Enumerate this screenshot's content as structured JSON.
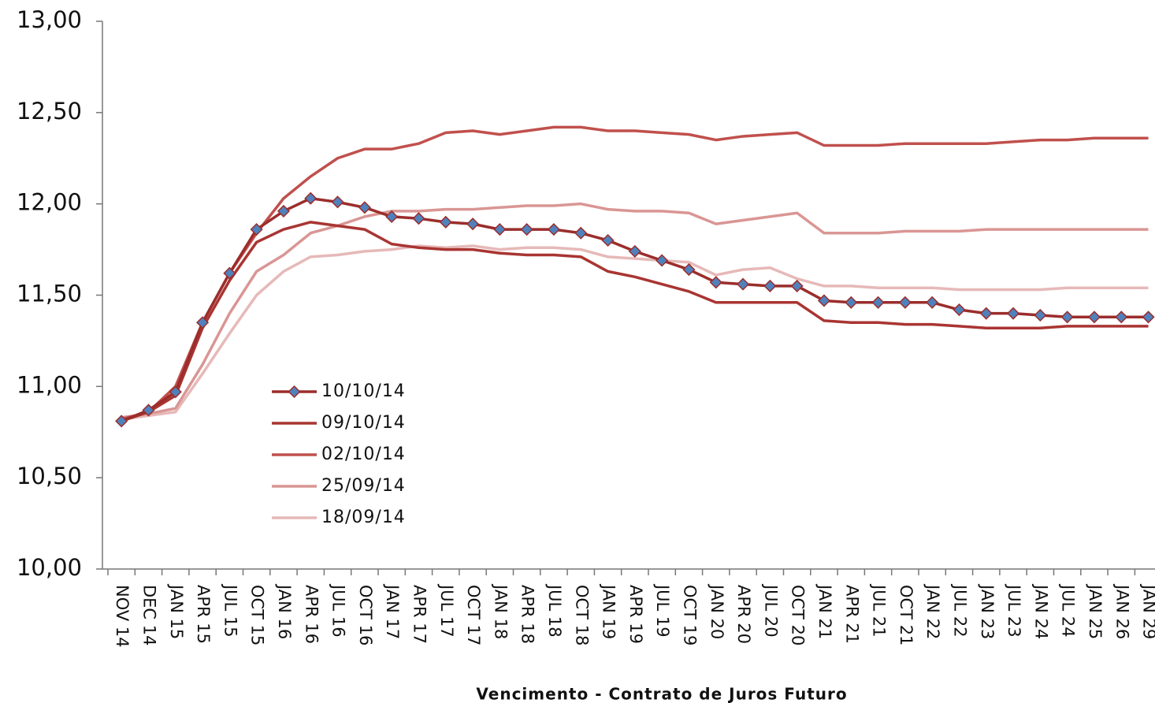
{
  "chart_data": {
    "type": "line",
    "x_label": "Vencimento - Contrato de Juros Futuro",
    "categories": [
      "NOV 14",
      "DEC 14",
      "JAN 15",
      "APR 15",
      "JUL 15",
      "OCT 15",
      "JAN 16",
      "APR 16",
      "JUL 16",
      "OCT 16",
      "JAN 17",
      "APR 17",
      "JUL 17",
      "OCT 17",
      "JAN 18",
      "APR 18",
      "JUL 18",
      "OCT 18",
      "JAN 19",
      "APR 19",
      "JUL 19",
      "OCT 19",
      "JAN 20",
      "APR 20",
      "JUL 20",
      "OCT 20",
      "JAN 21",
      "APR 21",
      "JUL 21",
      "OCT 21",
      "JAN 22",
      "JUL 22",
      "JAN 23",
      "JUL 23",
      "JAN 24",
      "JUL 24",
      "JAN 25",
      "JAN 26",
      "JAN 29"
    ],
    "series": [
      {
        "name": "10/10/14",
        "color": "#9b2d2b",
        "marker": "diamond",
        "marker_color": "#4f81bd",
        "values": [
          10.81,
          10.87,
          10.97,
          11.35,
          11.62,
          11.86,
          11.96,
          12.03,
          12.01,
          11.98,
          11.93,
          11.92,
          11.9,
          11.89,
          11.86,
          11.86,
          11.86,
          11.84,
          11.8,
          11.74,
          11.69,
          11.64,
          11.57,
          11.56,
          11.55,
          11.55,
          11.47,
          11.46,
          11.46,
          11.46,
          11.46,
          11.42,
          11.4,
          11.4,
          11.39,
          11.38,
          11.38,
          11.38,
          11.38
        ]
      },
      {
        "name": "09/10/14",
        "color": "#a93532",
        "values": [
          10.81,
          10.86,
          10.95,
          11.32,
          11.58,
          11.79,
          11.86,
          11.9,
          11.88,
          11.86,
          11.78,
          11.76,
          11.75,
          11.75,
          11.73,
          11.72,
          11.72,
          11.71,
          11.63,
          11.6,
          11.56,
          11.52,
          11.46,
          11.46,
          11.46,
          11.46,
          11.36,
          11.35,
          11.35,
          11.34,
          11.34,
          11.33,
          11.32,
          11.32,
          11.32,
          11.33,
          11.33,
          11.33,
          11.33
        ]
      },
      {
        "name": "02/10/14",
        "color": "#c0504d",
        "values": [
          10.82,
          10.86,
          11.0,
          11.35,
          11.62,
          11.84,
          12.03,
          12.15,
          12.25,
          12.3,
          12.3,
          12.33,
          12.39,
          12.4,
          12.38,
          12.4,
          12.42,
          12.42,
          12.4,
          12.4,
          12.39,
          12.38,
          12.35,
          12.37,
          12.38,
          12.39,
          12.32,
          12.32,
          12.32,
          12.33,
          12.33,
          12.33,
          12.33,
          12.34,
          12.35,
          12.35,
          12.36,
          12.36,
          12.36
        ]
      },
      {
        "name": "25/09/14",
        "color": "#d99694",
        "values": [
          10.83,
          10.85,
          10.88,
          11.12,
          11.4,
          11.63,
          11.72,
          11.84,
          11.88,
          11.93,
          11.96,
          11.96,
          11.97,
          11.97,
          11.98,
          11.99,
          11.99,
          12.0,
          11.97,
          11.96,
          11.96,
          11.95,
          11.89,
          11.91,
          11.93,
          11.95,
          11.84,
          11.84,
          11.84,
          11.85,
          11.85,
          11.85,
          11.86,
          11.86,
          11.86,
          11.86,
          11.86,
          11.86,
          11.86
        ]
      },
      {
        "name": "18/09/14",
        "color": "#e6b9b8",
        "values": [
          10.82,
          10.84,
          10.86,
          11.07,
          11.29,
          11.5,
          11.63,
          11.71,
          11.72,
          11.74,
          11.75,
          11.77,
          11.76,
          11.77,
          11.75,
          11.76,
          11.76,
          11.75,
          11.71,
          11.7,
          11.69,
          11.68,
          11.61,
          11.64,
          11.65,
          11.59,
          11.55,
          11.55,
          11.54,
          11.54,
          11.54,
          11.53,
          11.53,
          11.53,
          11.53,
          11.54,
          11.54,
          11.54,
          11.54
        ]
      }
    ],
    "ylim": [
      10,
      13
    ],
    "yticks": [
      {
        "value": 10,
        "label": "10,00"
      },
      {
        "value": 10.5,
        "label": "10,50"
      },
      {
        "value": 11,
        "label": "11,00"
      },
      {
        "value": 11.5,
        "label": "11,50"
      },
      {
        "value": 12,
        "label": "12,00"
      },
      {
        "value": 12.5,
        "label": "12,50"
      },
      {
        "value": 13,
        "label": "13,00"
      }
    ],
    "grid": false
  }
}
